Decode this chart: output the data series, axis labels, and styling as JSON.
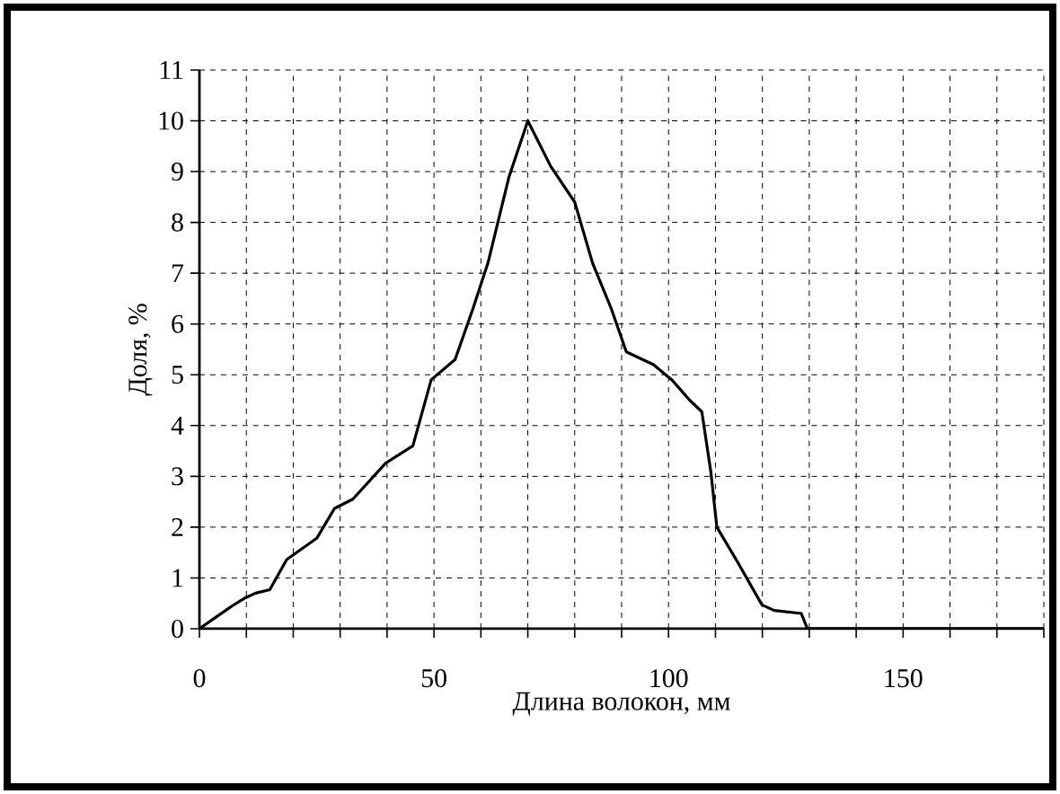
{
  "chart_data": {
    "type": "line",
    "xlabel": "Длина волокон, мм",
    "ylabel": "Доля, %",
    "series": [
      {
        "color": "#000000",
        "x": [
          0,
          7,
          9.6,
          12,
          15,
          18.6,
          25,
          28.8,
          32.7,
          39.7,
          45.5,
          49.4,
          54.5,
          58.3,
          61.5,
          66,
          70,
          74.9,
          80,
          83.8,
          87.8,
          91,
          96.8,
          100.7,
          104.5,
          107.1,
          109,
          110.3,
          114.8,
          119.9,
          122.5,
          128.3,
          129.6,
          180
        ],
        "values": [
          0,
          0.45,
          0.6,
          0.7,
          0.77,
          1.36,
          1.78,
          2.37,
          2.55,
          3.26,
          3.6,
          4.9,
          5.3,
          6.3,
          7.2,
          8.9,
          10,
          9.1,
          8.4,
          7.2,
          6.3,
          5.45,
          5.2,
          4.9,
          4.5,
          4.27,
          3.1,
          2.0,
          1.3,
          0.47,
          0.36,
          0.3,
          0,
          0
        ]
      }
    ],
    "xlim": [
      0,
      180
    ],
    "ylim": [
      0,
      11
    ],
    "xticks": [
      0,
      {
        "value": 10,
        "label": null
      },
      {
        "value": 20,
        "label": null
      },
      {
        "value": 30,
        "label": null
      },
      {
        "value": 40,
        "label": null
      },
      50,
      {
        "value": 60,
        "label": null
      },
      {
        "value": 70,
        "label": null
      },
      {
        "value": 80,
        "label": null
      },
      {
        "value": 90,
        "label": null
      },
      100,
      {
        "value": 110,
        "label": null
      },
      {
        "value": 120,
        "label": null
      },
      {
        "value": 130,
        "label": null
      },
      {
        "value": 140,
        "label": null
      },
      150,
      {
        "value": 160,
        "label": null
      },
      {
        "value": 170,
        "label": null
      },
      {
        "value": 180,
        "label": null
      }
    ],
    "yticks": [
      0,
      1,
      2,
      3,
      4,
      5,
      6,
      7,
      8,
      9,
      10,
      11
    ],
    "grid": true,
    "marker": "none",
    "line_style": "solid"
  }
}
